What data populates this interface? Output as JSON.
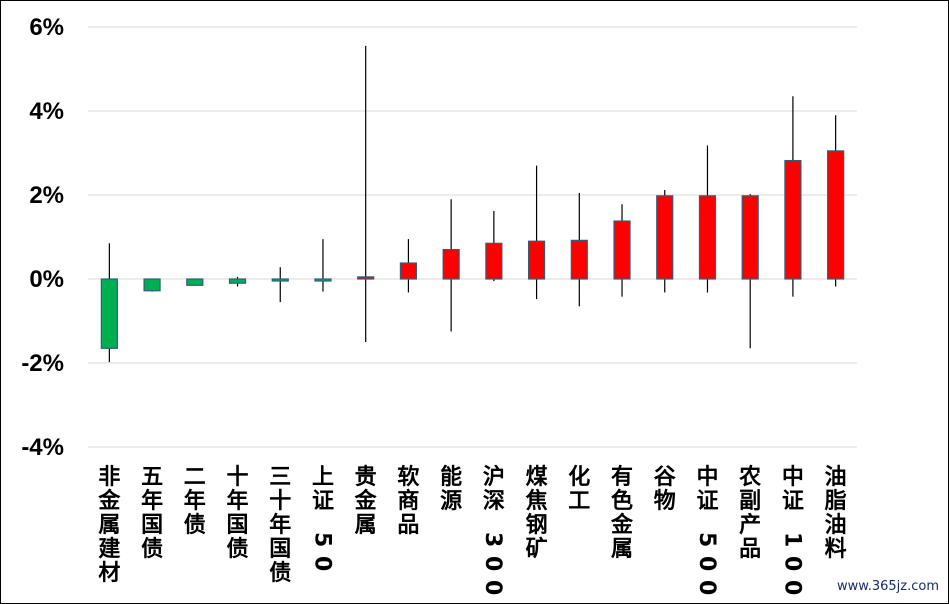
{
  "chart_data": {
    "type": "candlestick",
    "title": "",
    "xlabel": "",
    "ylabel": "",
    "ylim": [
      -4,
      6
    ],
    "yticks": [
      6,
      4,
      2,
      0,
      -2,
      -4
    ],
    "ytick_labels": [
      "6%",
      "4%",
      "2%",
      "0%",
      "-2%",
      "-4%"
    ],
    "grid": true,
    "colors": {
      "up": "#ff0000",
      "down": "#00b050",
      "body_stroke": "#2e5f7a",
      "wick": "#000000",
      "grid": "#d9d9d9"
    },
    "categories": [
      "非金属建材",
      "五年国债",
      "二年债",
      "十年国债",
      "三十年国债",
      "上证50",
      "贵金属",
      "软商品",
      "能源",
      "沪深300",
      "煤焦钢矿",
      "化工",
      "有色金属",
      "谷物",
      "中证500",
      "农副产品",
      "中证1000",
      "油脂油料"
    ],
    "open": [
      0,
      0,
      0,
      0,
      0,
      0,
      0,
      0,
      0,
      0,
      0,
      0,
      0,
      0,
      0,
      0,
      0,
      0
    ],
    "close": [
      -1.65,
      -0.28,
      -0.15,
      -0.1,
      -0.03,
      -0.02,
      0.05,
      0.38,
      0.7,
      0.85,
      0.9,
      0.92,
      1.38,
      1.98,
      1.98,
      1.98,
      2.82,
      3.05
    ],
    "high": [
      0.85,
      0.0,
      0.0,
      0.05,
      0.28,
      0.95,
      5.55,
      0.95,
      1.9,
      1.62,
      2.7,
      2.05,
      1.78,
      2.12,
      3.18,
      2.02,
      4.35,
      3.9
    ],
    "low": [
      -1.98,
      -0.3,
      -0.15,
      -0.18,
      -0.55,
      -0.3,
      -1.5,
      -0.32,
      -1.25,
      -0.05,
      -0.48,
      -0.65,
      -0.42,
      -0.32,
      -0.32,
      -1.65,
      -0.42,
      -0.18
    ]
  },
  "watermark": "www.365jz.com"
}
